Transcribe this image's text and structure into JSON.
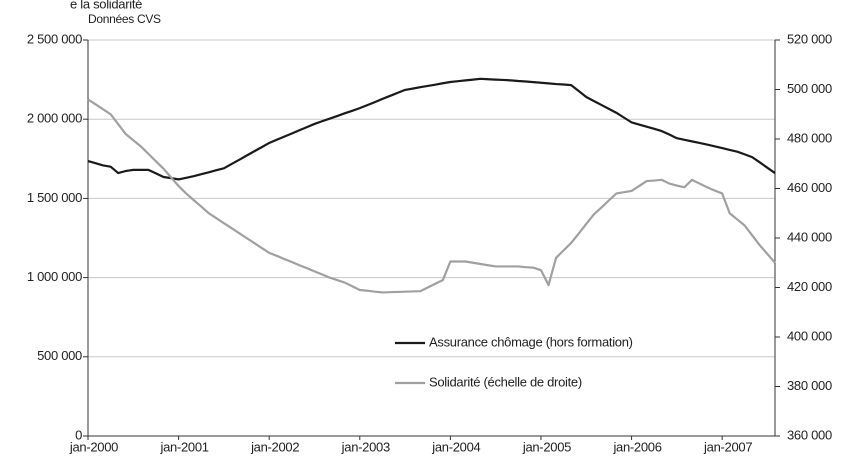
{
  "chart_data": {
    "type": "line",
    "title": "e la solidarité",
    "y_label": "Données CVS",
    "categories": [
      "jan-2000",
      null,
      null,
      null,
      null,
      null,
      null,
      null,
      null,
      null,
      null,
      null,
      "jan-2001",
      null,
      null,
      null,
      null,
      null,
      null,
      null,
      null,
      null,
      null,
      null,
      "jan-2002",
      null,
      null,
      null,
      null,
      null,
      null,
      null,
      null,
      null,
      null,
      null,
      "jan-2003",
      null,
      null,
      null,
      null,
      null,
      null,
      null,
      null,
      null,
      null,
      null,
      "jan-2004",
      null,
      null,
      null,
      null,
      null,
      null,
      null,
      null,
      null,
      null,
      null,
      "jan-2005",
      null,
      null,
      null,
      null,
      null,
      null,
      null,
      null,
      null,
      null,
      null,
      "jan-2006",
      null,
      null,
      null,
      null,
      null,
      null,
      null,
      null,
      null,
      null,
      null,
      "jan-2007",
      null,
      null,
      null,
      null,
      null,
      null,
      null
    ],
    "series": [
      {
        "name": "Assurance chômage (hors formation)",
        "color": "#1a1a1a",
        "axis": "y",
        "values": [
          1736000,
          1722000,
          1708000,
          1700000,
          1660000,
          1673000,
          1680000,
          1680000,
          1680000,
          1658000,
          1635000,
          1628000,
          1620000,
          1630000,
          1640000,
          1653000,
          1665000,
          1678000,
          1690000,
          1717000,
          1743000,
          1770000,
          1797000,
          1823000,
          1850000,
          1870000,
          1890000,
          1910000,
          1930000,
          1950000,
          1970000,
          1987000,
          2003000,
          2020000,
          2037000,
          2053000,
          2070000,
          2089000,
          2108000,
          2128000,
          2147000,
          2166000,
          2185000,
          2193000,
          2202000,
          2210000,
          2218000,
          2227000,
          2235000,
          2240000,
          2245000,
          2250000,
          2255000,
          2252000,
          2250000,
          2248000,
          2245000,
          2241000,
          2238000,
          2234000,
          2230000,
          2226000,
          2222000,
          2219000,
          2215000,
          2178000,
          2140000,
          2115000,
          2090000,
          2065000,
          2040000,
          2010000,
          1980000,
          1966000,
          1953000,
          1939000,
          1925000,
          1903000,
          1880000,
          1870000,
          1860000,
          1850000,
          1840000,
          1829000,
          1818000,
          1806000,
          1795000,
          1778000,
          1760000,
          1727000,
          1693000,
          1660000
        ]
      },
      {
        "name": "Solidarité (échelle de droite)",
        "color": "#a0a0a0",
        "axis": "y2",
        "values": [
          496000,
          494000,
          492000,
          490000,
          486000,
          482000,
          479500,
          477000,
          474000,
          471000,
          468000,
          464500,
          461000,
          458000,
          455300,
          452700,
          450000,
          448000,
          446000,
          444000,
          442000,
          440000,
          438000,
          436000,
          434000,
          432800,
          431500,
          430300,
          429000,
          427800,
          426500,
          425300,
          424000,
          423000,
          422000,
          420500,
          419000,
          418700,
          418300,
          418000,
          418100,
          418200,
          418300,
          418400,
          418500,
          420000,
          421500,
          423000,
          430500,
          430500,
          430500,
          430000,
          429500,
          429000,
          428500,
          428500,
          428500,
          428500,
          428200,
          428000,
          427000,
          421000,
          432000,
          435000,
          438000,
          441800,
          445700,
          449500,
          452300,
          455200,
          458000,
          458500,
          459000,
          461000,
          463000,
          463200,
          463500,
          462000,
          461200,
          460500,
          463500,
          462000,
          460500,
          459200,
          458000,
          450000,
          447500,
          445000,
          441000,
          437000,
          433500,
          430000
        ]
      }
    ],
    "ylim": [
      0,
      2500000
    ],
    "yticks": [
      0,
      {
        "value": 500000,
        "label": "500 000"
      },
      {
        "value": 1000000,
        "label": "1 000 000"
      },
      {
        "value": 1500000,
        "label": "1 500 000"
      },
      {
        "value": 2000000,
        "label": "2 000 000"
      },
      {
        "value": 2500000,
        "label": "2 500 000"
      }
    ],
    "y2lim": [
      360000,
      520000
    ],
    "y2ticks": [
      {
        "value": 360000,
        "label": "360 000"
      },
      {
        "value": 380000,
        "label": "380 000"
      },
      {
        "value": 400000,
        "label": "400 000"
      },
      {
        "value": 420000,
        "label": "420 000"
      },
      {
        "value": 440000,
        "label": "440 000"
      },
      {
        "value": 460000,
        "label": "460 000"
      },
      {
        "value": 480000,
        "label": "480 000"
      },
      {
        "value": 500000,
        "label": "500 000"
      },
      {
        "value": 520000,
        "label": "520 000"
      }
    ],
    "grid": true,
    "legend_position": "lower center"
  }
}
